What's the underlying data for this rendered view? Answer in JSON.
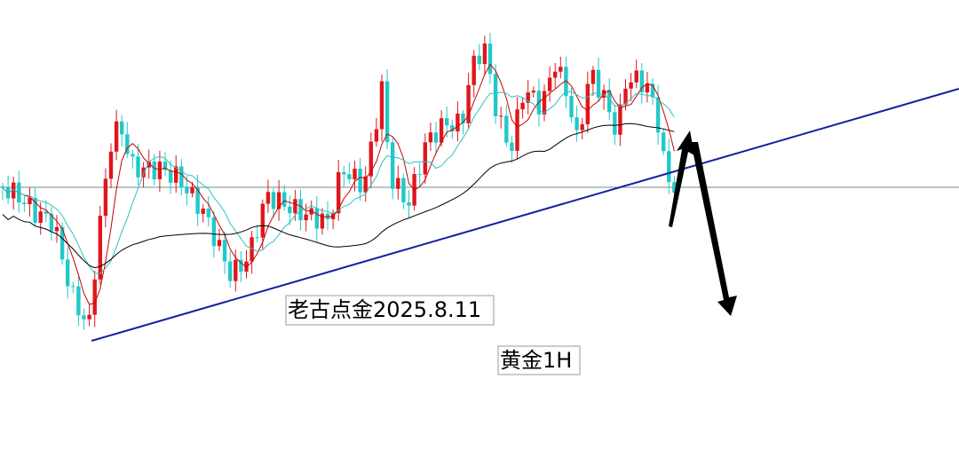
{
  "annotations": {
    "author_date": "老古点金2025.8.11",
    "symbol_timeframe": "黄金1H"
  }
}
